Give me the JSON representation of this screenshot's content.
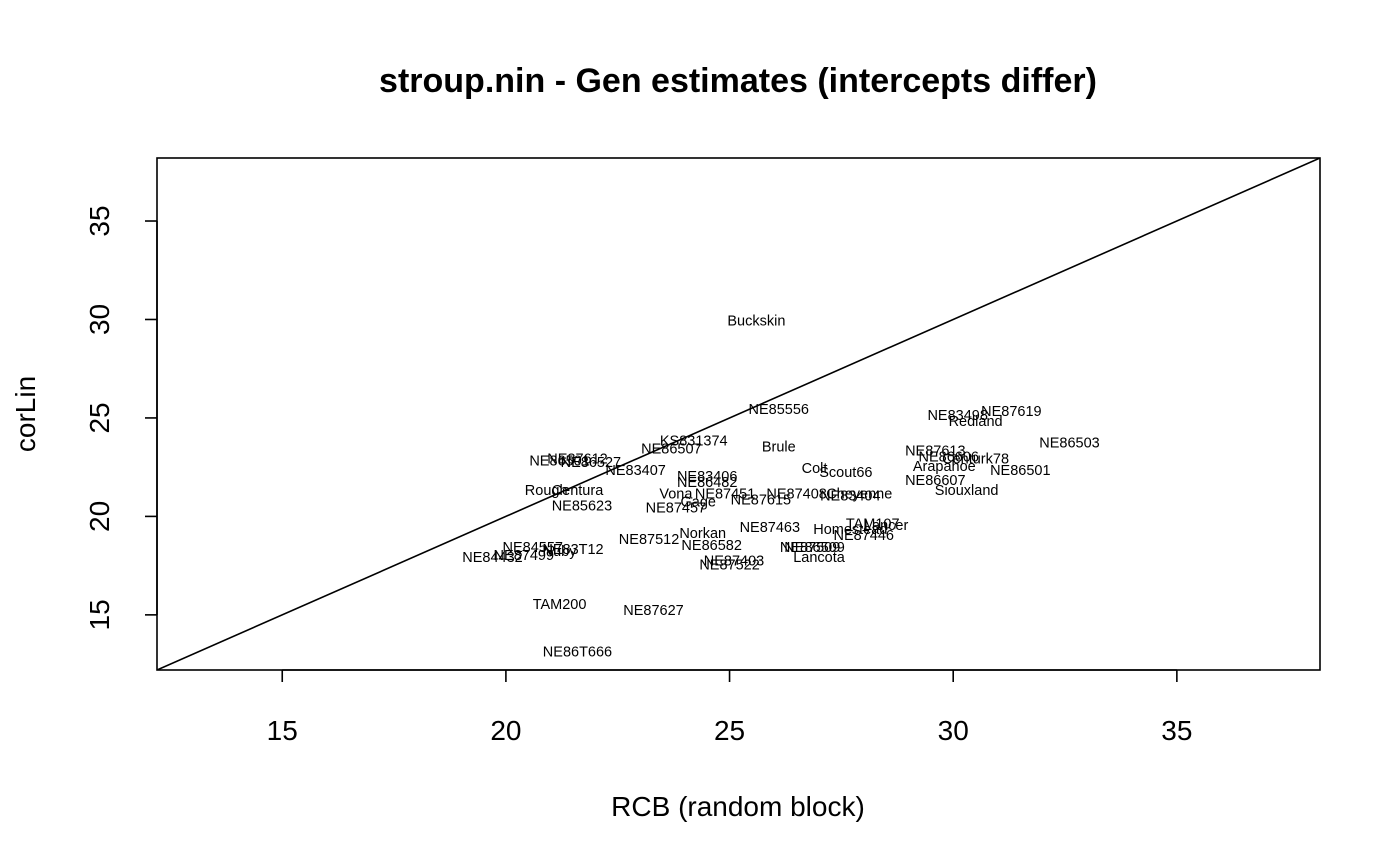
{
  "chart_data": {
    "type": "scatter",
    "title": "stroup.nin - Gen estimates (intercepts differ)",
    "xlabel": "RCB (random block)",
    "ylabel": "corLin",
    "xlim": [
      12.2,
      38.2
    ],
    "ylim": [
      12.2,
      38.2
    ],
    "xticks": [
      15,
      20,
      25,
      30,
      35
    ],
    "yticks": [
      15,
      20,
      25,
      30,
      35
    ],
    "grid": false,
    "reference_line": {
      "slope": 1,
      "intercept": 0
    },
    "points": [
      {
        "label": "Buckskin",
        "x": 25.6,
        "y": 29.9
      },
      {
        "label": "NE85556",
        "x": 26.1,
        "y": 25.4
      },
      {
        "label": "NE83498",
        "x": 30.1,
        "y": 25.1
      },
      {
        "label": "NE87619",
        "x": 31.3,
        "y": 25.3
      },
      {
        "label": "Redland",
        "x": 30.5,
        "y": 24.8
      },
      {
        "label": "NE86503",
        "x": 32.6,
        "y": 23.7
      },
      {
        "label": "KS831374",
        "x": 24.2,
        "y": 23.8
      },
      {
        "label": "NE86507",
        "x": 23.7,
        "y": 23.4
      },
      {
        "label": "Brule",
        "x": 26.1,
        "y": 23.5
      },
      {
        "label": "NE87613",
        "x": 29.6,
        "y": 23.3
      },
      {
        "label": "NE86606",
        "x": 29.9,
        "y": 23.0
      },
      {
        "label": "Centurk78",
        "x": 30.5,
        "y": 22.9
      },
      {
        "label": "NE87612",
        "x": 21.6,
        "y": 22.9
      },
      {
        "label": "NE86501",
        "x": 21.2,
        "y": 22.8
      },
      {
        "label": "NE86527",
        "x": 21.9,
        "y": 22.7
      },
      {
        "label": "NE83407",
        "x": 22.9,
        "y": 22.3
      },
      {
        "label": "Arapahoe",
        "x": 29.8,
        "y": 22.5
      },
      {
        "label": "NE86501",
        "x": 31.5,
        "y": 22.3
      },
      {
        "label": "Colt",
        "x": 26.9,
        "y": 22.4
      },
      {
        "label": "Scout66",
        "x": 27.6,
        "y": 22.2
      },
      {
        "label": "NE83406",
        "x": 24.5,
        "y": 22.0
      },
      {
        "label": "NE86482",
        "x": 24.5,
        "y": 21.7
      },
      {
        "label": "NE86607",
        "x": 29.6,
        "y": 21.8
      },
      {
        "label": "Siouxland",
        "x": 30.3,
        "y": 21.3
      },
      {
        "label": "Rough",
        "x": 20.9,
        "y": 21.3
      },
      {
        "label": "Centura",
        "x": 21.6,
        "y": 21.3
      },
      {
        "label": "Vona",
        "x": 23.8,
        "y": 21.1
      },
      {
        "label": "NE87451",
        "x": 24.9,
        "y": 21.1
      },
      {
        "label": "NE87408",
        "x": 26.5,
        "y": 21.1
      },
      {
        "label": "Cheyenne",
        "x": 27.9,
        "y": 21.1
      },
      {
        "label": "NE83404",
        "x": 27.7,
        "y": 21.0
      },
      {
        "label": "Gage",
        "x": 24.3,
        "y": 20.7
      },
      {
        "label": "NE87615",
        "x": 25.7,
        "y": 20.8
      },
      {
        "label": "NE85623",
        "x": 21.7,
        "y": 20.5
      },
      {
        "label": "NE87457",
        "x": 23.8,
        "y": 20.4
      },
      {
        "label": "TAM107",
        "x": 28.2,
        "y": 19.6
      },
      {
        "label": "Lancer",
        "x": 28.5,
        "y": 19.5
      },
      {
        "label": "NE87463",
        "x": 25.9,
        "y": 19.4
      },
      {
        "label": "Homestead",
        "x": 27.7,
        "y": 19.3
      },
      {
        "label": "NE87446",
        "x": 28.0,
        "y": 19.0
      },
      {
        "label": "Norkan",
        "x": 24.4,
        "y": 19.1
      },
      {
        "label": "NE87512",
        "x": 23.2,
        "y": 18.8
      },
      {
        "label": "NE86582",
        "x": 24.6,
        "y": 18.5
      },
      {
        "label": "NE87509",
        "x": 26.8,
        "y": 18.4
      },
      {
        "label": "NE86509",
        "x": 26.9,
        "y": 18.4
      },
      {
        "label": "Lancota",
        "x": 27.0,
        "y": 17.9
      },
      {
        "label": "NE87403",
        "x": 25.1,
        "y": 17.7
      },
      {
        "label": "NE87522",
        "x": 25.0,
        "y": 17.5
      },
      {
        "label": "NE84557",
        "x": 20.6,
        "y": 18.4
      },
      {
        "label": "Nuby",
        "x": 21.2,
        "y": 18.2
      },
      {
        "label": "NE83T12",
        "x": 21.5,
        "y": 18.3
      },
      {
        "label": "NE87499",
        "x": 20.4,
        "y": 18.0
      },
      {
        "label": "NE84432",
        "x": 19.7,
        "y": 17.9
      },
      {
        "label": "TAM200",
        "x": 21.2,
        "y": 15.5
      },
      {
        "label": "NE87627",
        "x": 23.3,
        "y": 15.2
      },
      {
        "label": "NE86T666",
        "x": 21.6,
        "y": 13.1
      }
    ]
  }
}
